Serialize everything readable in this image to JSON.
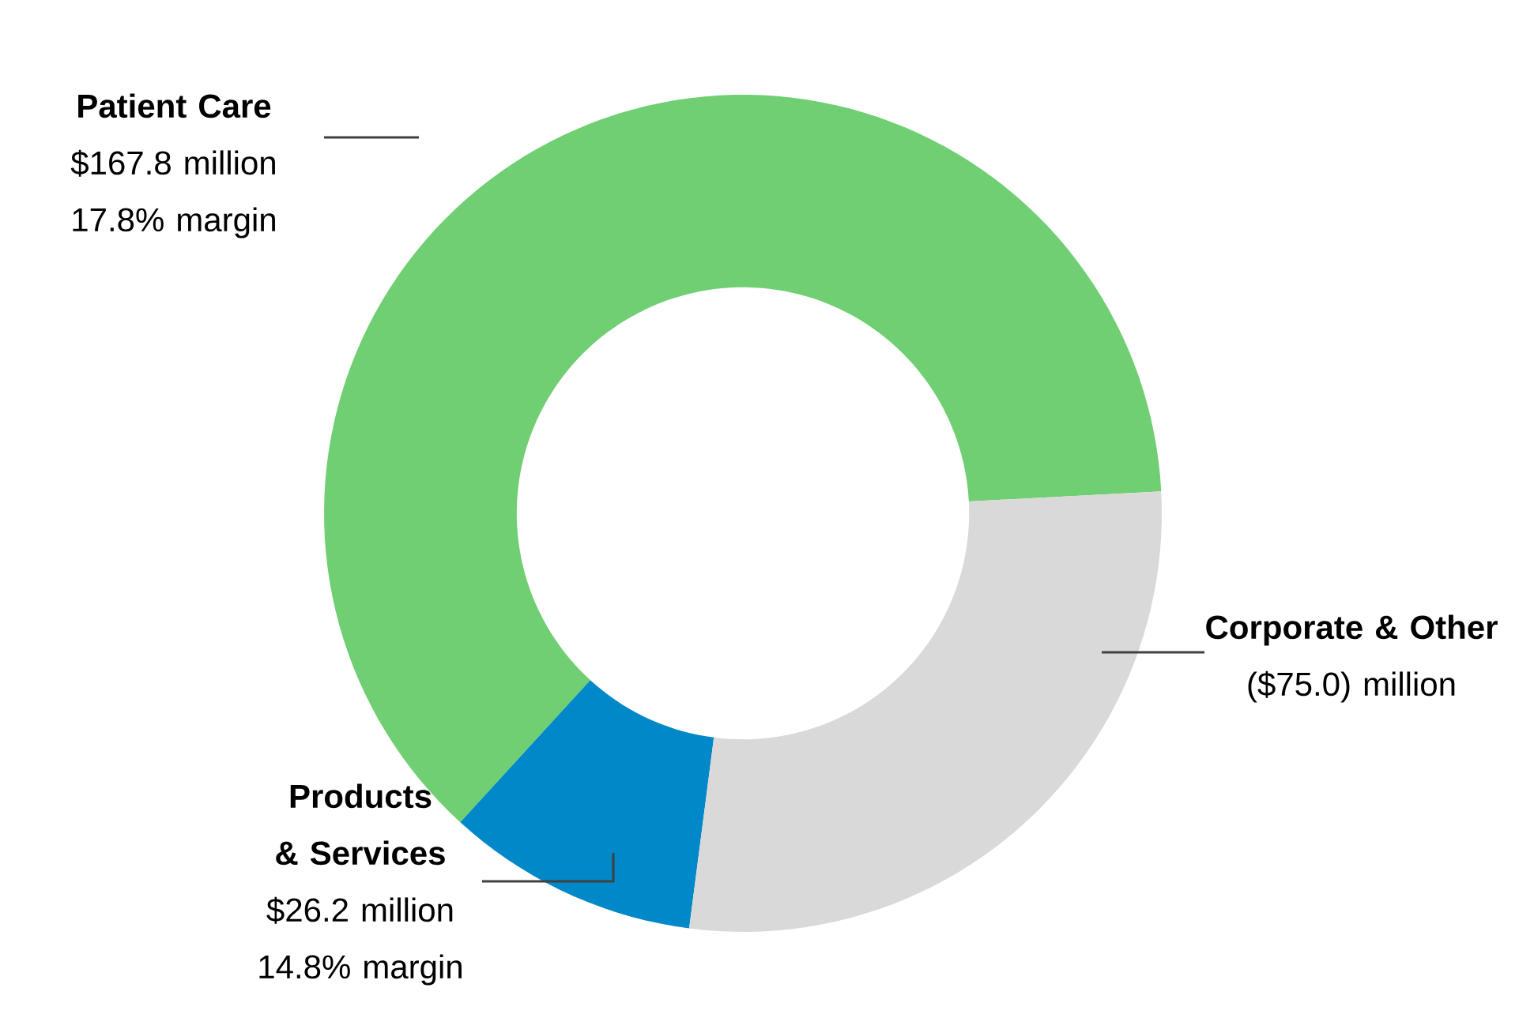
{
  "chart_data": {
    "type": "donut",
    "categories": [
      "Patient Care",
      "Products & Services",
      "Corporate & Other"
    ],
    "values": [
      167.8,
      26.2,
      75.0
    ],
    "value_labels": [
      "$167.8 million",
      "$26.2 million",
      "($75.0) million"
    ],
    "colors": [
      "#70cf72",
      "#0088c8",
      "#d9d9d9"
    ],
    "annotations": [
      "17.8% margin",
      "14.8% margin"
    ]
  }
}
